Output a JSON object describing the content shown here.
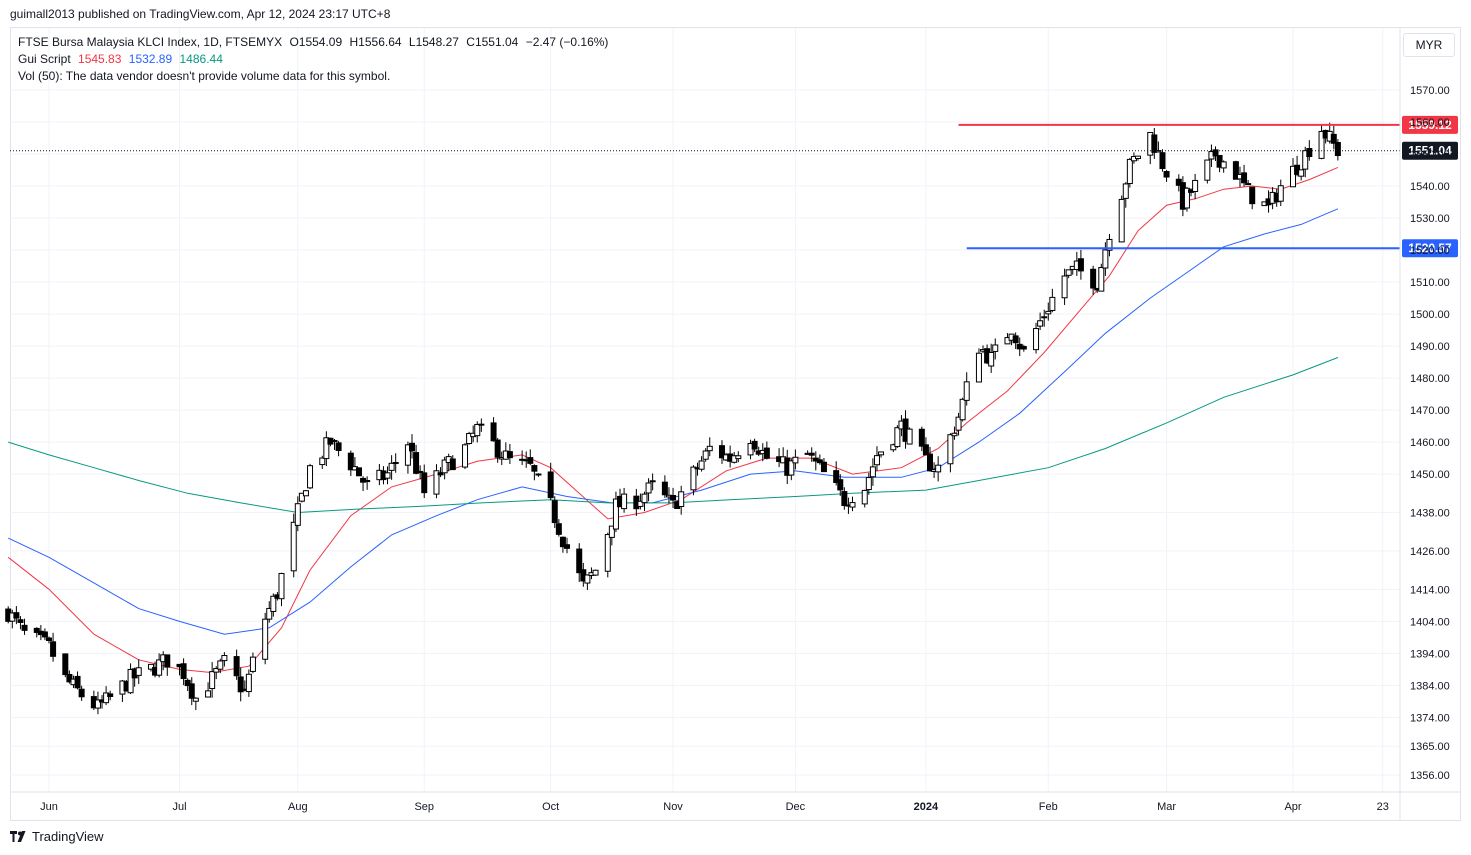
{
  "header": {
    "published_by": "guimall2013 published on TradingView.com, Apr 12, 2024 23:17 UTC+8"
  },
  "legend": {
    "symbol_line": "FTSE Bursa Malaysia KLCI Index, 1D, FTSEMYX",
    "open": "O1554.09",
    "high": "H1556.64",
    "low": "L1548.27",
    "close": "C1551.04",
    "change": "−2.47 (−0.16%)",
    "script_name": "Gui Script",
    "ma_fast_value": "1545.83",
    "ma_mid_value": "1532.89",
    "ma_slow_value": "1486.44",
    "volume_note": "Vol (50): The data vendor doesn't provide volume data for this symbol."
  },
  "currency": "MYR",
  "brand": "TradingView",
  "colors": {
    "ma_fast": "#f23645",
    "ma_mid": "#2962ff",
    "ma_slow": "#089981",
    "resistance": "#f23645",
    "support": "#2962ff",
    "grid": "#f0f3fa",
    "text": "#131722"
  },
  "chart_data": {
    "type": "candlestick",
    "price_axis": {
      "min": 1350,
      "max": 1580,
      "ticks": [
        1570,
        1560,
        1550,
        1540,
        1530,
        1520,
        1510,
        1500,
        1490,
        1480,
        1470,
        1460,
        1450,
        1438,
        1426,
        1414,
        1404,
        1394,
        1384,
        1374,
        1365,
        1356
      ],
      "tick_labels": [
        "1570.00",
        "1560.00",
        "1550.00",
        "1540.00",
        "1530.00",
        "1520.00",
        "1510.00",
        "1500.00",
        "1490.00",
        "1480.00",
        "1470.00",
        "1460.00",
        "1450.00",
        "1438.00",
        "1426.00",
        "1414.00",
        "1404.00",
        "1394.00",
        "1384.00",
        "1374.00",
        "1365.00",
        "1356.00"
      ]
    },
    "time_axis": {
      "labels": [
        {
          "date": "2023-06-01",
          "label": "Jun",
          "bold": false
        },
        {
          "date": "2023-07-03",
          "label": "Jul",
          "bold": false
        },
        {
          "date": "2023-08-01",
          "label": "Aug",
          "bold": false
        },
        {
          "date": "2023-09-01",
          "label": "Sep",
          "bold": false
        },
        {
          "date": "2023-10-02",
          "label": "Oct",
          "bold": false
        },
        {
          "date": "2023-11-01",
          "label": "Nov",
          "bold": false
        },
        {
          "date": "2023-12-01",
          "label": "Dec",
          "bold": false
        },
        {
          "date": "2024-01-02",
          "label": "2024",
          "bold": true
        },
        {
          "date": "2024-02-01",
          "label": "Feb",
          "bold": false
        },
        {
          "date": "2024-03-01",
          "label": "Mar",
          "bold": false
        },
        {
          "date": "2024-04-01",
          "label": "Apr",
          "bold": false
        },
        {
          "date": "2024-04-23",
          "label": "23",
          "bold": false
        }
      ]
    },
    "last_price": {
      "value": 1551.04,
      "label": "1551.04"
    },
    "horizontal_levels": [
      {
        "name": "resistance",
        "value": 1559.12,
        "label": "1559.12",
        "start_date": "2024-01-10"
      },
      {
        "name": "support",
        "value": 1520.57,
        "label": "1520.57",
        "start_date": "2024-01-12"
      }
    ],
    "closes": [
      {
        "date": "2023-05-22",
        "close": 1407
      },
      {
        "date": "2023-05-26",
        "close": 1400
      },
      {
        "date": "2023-06-01",
        "close": 1396
      },
      {
        "date": "2023-06-05",
        "close": 1386
      },
      {
        "date": "2023-06-09",
        "close": 1381
      },
      {
        "date": "2023-06-13",
        "close": 1377
      },
      {
        "date": "2023-06-16",
        "close": 1380
      },
      {
        "date": "2023-06-21",
        "close": 1386
      },
      {
        "date": "2023-06-26",
        "close": 1389
      },
      {
        "date": "2023-06-30",
        "close": 1392
      },
      {
        "date": "2023-07-04",
        "close": 1388
      },
      {
        "date": "2023-07-07",
        "close": 1380
      },
      {
        "date": "2023-07-11",
        "close": 1386
      },
      {
        "date": "2023-07-14",
        "close": 1391
      },
      {
        "date": "2023-07-19",
        "close": 1382
      },
      {
        "date": "2023-07-24",
        "close": 1405
      },
      {
        "date": "2023-07-27",
        "close": 1413
      },
      {
        "date": "2023-08-01",
        "close": 1438
      },
      {
        "date": "2023-08-04",
        "close": 1452
      },
      {
        "date": "2023-08-09",
        "close": 1460
      },
      {
        "date": "2023-08-15",
        "close": 1452
      },
      {
        "date": "2023-08-18",
        "close": 1446
      },
      {
        "date": "2023-08-23",
        "close": 1450
      },
      {
        "date": "2023-08-28",
        "close": 1460
      },
      {
        "date": "2023-09-01",
        "close": 1444
      },
      {
        "date": "2023-09-06",
        "close": 1452
      },
      {
        "date": "2023-09-11",
        "close": 1458
      },
      {
        "date": "2023-09-14",
        "close": 1464
      },
      {
        "date": "2023-09-19",
        "close": 1458
      },
      {
        "date": "2023-09-22",
        "close": 1454
      },
      {
        "date": "2023-09-27",
        "close": 1452
      },
      {
        "date": "2023-10-02",
        "close": 1440
      },
      {
        "date": "2023-10-05",
        "close": 1430
      },
      {
        "date": "2023-10-10",
        "close": 1415
      },
      {
        "date": "2023-10-13",
        "close": 1420
      },
      {
        "date": "2023-10-18",
        "close": 1440
      },
      {
        "date": "2023-10-23",
        "close": 1442
      },
      {
        "date": "2023-10-27",
        "close": 1446
      },
      {
        "date": "2023-11-01",
        "close": 1440
      },
      {
        "date": "2023-11-06",
        "close": 1450
      },
      {
        "date": "2023-11-10",
        "close": 1458
      },
      {
        "date": "2023-11-15",
        "close": 1455
      },
      {
        "date": "2023-11-20",
        "close": 1462
      },
      {
        "date": "2023-11-24",
        "close": 1455
      },
      {
        "date": "2023-11-29",
        "close": 1452
      },
      {
        "date": "2023-12-04",
        "close": 1456
      },
      {
        "date": "2023-12-08",
        "close": 1450
      },
      {
        "date": "2023-12-13",
        "close": 1442
      },
      {
        "date": "2023-12-18",
        "close": 1446
      },
      {
        "date": "2023-12-21",
        "close": 1456
      },
      {
        "date": "2023-12-27",
        "close": 1465
      },
      {
        "date": "2024-01-02",
        "close": 1454
      },
      {
        "date": "2024-01-05",
        "close": 1452
      },
      {
        "date": "2024-01-10",
        "close": 1468
      },
      {
        "date": "2024-01-15",
        "close": 1490
      },
      {
        "date": "2024-01-18",
        "close": 1486
      },
      {
        "date": "2024-01-23",
        "close": 1496
      },
      {
        "date": "2024-01-26",
        "close": 1488
      },
      {
        "date": "2024-01-31",
        "close": 1500
      },
      {
        "date": "2024-02-05",
        "close": 1512
      },
      {
        "date": "2024-02-08",
        "close": 1514
      },
      {
        "date": "2024-02-13",
        "close": 1510
      },
      {
        "date": "2024-02-16",
        "close": 1526
      },
      {
        "date": "2024-02-21",
        "close": 1546
      },
      {
        "date": "2024-02-26",
        "close": 1556
      },
      {
        "date": "2024-02-29",
        "close": 1547
      },
      {
        "date": "2024-03-05",
        "close": 1535
      },
      {
        "date": "2024-03-08",
        "close": 1540
      },
      {
        "date": "2024-03-13",
        "close": 1550
      },
      {
        "date": "2024-03-18",
        "close": 1544
      },
      {
        "date": "2024-03-21",
        "close": 1538
      },
      {
        "date": "2024-03-26",
        "close": 1533
      },
      {
        "date": "2024-03-29",
        "close": 1540
      },
      {
        "date": "2024-04-03",
        "close": 1548
      },
      {
        "date": "2024-04-08",
        "close": 1558
      },
      {
        "date": "2024-04-12",
        "close": 1551
      }
    ],
    "series": [
      {
        "id": "ma_fast",
        "name": "Gui Script",
        "values": [
          {
            "date": "2023-05-22",
            "value": 1424
          },
          {
            "date": "2023-06-01",
            "value": 1414
          },
          {
            "date": "2023-06-12",
            "value": 1400
          },
          {
            "date": "2023-06-23",
            "value": 1392
          },
          {
            "date": "2023-07-03",
            "value": 1389
          },
          {
            "date": "2023-07-11",
            "value": 1388
          },
          {
            "date": "2023-07-20",
            "value": 1390
          },
          {
            "date": "2023-07-28",
            "value": 1402
          },
          {
            "date": "2023-08-04",
            "value": 1420
          },
          {
            "date": "2023-08-14",
            "value": 1437
          },
          {
            "date": "2023-08-24",
            "value": 1446
          },
          {
            "date": "2023-09-04",
            "value": 1450
          },
          {
            "date": "2023-09-14",
            "value": 1454
          },
          {
            "date": "2023-09-25",
            "value": 1456
          },
          {
            "date": "2023-10-02",
            "value": 1452
          },
          {
            "date": "2023-10-09",
            "value": 1444
          },
          {
            "date": "2023-10-16",
            "value": 1436
          },
          {
            "date": "2023-10-25",
            "value": 1438
          },
          {
            "date": "2023-11-03",
            "value": 1442
          },
          {
            "date": "2023-11-14",
            "value": 1451
          },
          {
            "date": "2023-11-24",
            "value": 1455
          },
          {
            "date": "2023-12-05",
            "value": 1455
          },
          {
            "date": "2023-12-15",
            "value": 1450
          },
          {
            "date": "2023-12-27",
            "value": 1452
          },
          {
            "date": "2024-01-05",
            "value": 1458
          },
          {
            "date": "2024-01-12",
            "value": 1466
          },
          {
            "date": "2024-01-22",
            "value": 1476
          },
          {
            "date": "2024-01-31",
            "value": 1488
          },
          {
            "date": "2024-02-08",
            "value": 1500
          },
          {
            "date": "2024-02-16",
            "value": 1512
          },
          {
            "date": "2024-02-23",
            "value": 1526
          },
          {
            "date": "2024-03-01",
            "value": 1534
          },
          {
            "date": "2024-03-08",
            "value": 1536
          },
          {
            "date": "2024-03-15",
            "value": 1539
          },
          {
            "date": "2024-03-22",
            "value": 1540
          },
          {
            "date": "2024-03-29",
            "value": 1539
          },
          {
            "date": "2024-04-05",
            "value": 1542
          },
          {
            "date": "2024-04-12",
            "value": 1545.83
          }
        ]
      },
      {
        "id": "ma_mid",
        "name": "",
        "values": [
          {
            "date": "2023-05-22",
            "value": 1430
          },
          {
            "date": "2023-06-01",
            "value": 1424
          },
          {
            "date": "2023-06-12",
            "value": 1416
          },
          {
            "date": "2023-06-23",
            "value": 1408
          },
          {
            "date": "2023-07-03",
            "value": 1404
          },
          {
            "date": "2023-07-14",
            "value": 1400
          },
          {
            "date": "2023-07-25",
            "value": 1402
          },
          {
            "date": "2023-08-04",
            "value": 1410
          },
          {
            "date": "2023-08-14",
            "value": 1421
          },
          {
            "date": "2023-08-24",
            "value": 1431
          },
          {
            "date": "2023-09-04",
            "value": 1437
          },
          {
            "date": "2023-09-14",
            "value": 1442
          },
          {
            "date": "2023-09-25",
            "value": 1446
          },
          {
            "date": "2023-10-06",
            "value": 1443
          },
          {
            "date": "2023-10-17",
            "value": 1441
          },
          {
            "date": "2023-10-27",
            "value": 1441
          },
          {
            "date": "2023-11-08",
            "value": 1445
          },
          {
            "date": "2023-11-20",
            "value": 1450
          },
          {
            "date": "2023-12-01",
            "value": 1451
          },
          {
            "date": "2023-12-13",
            "value": 1449
          },
          {
            "date": "2023-12-27",
            "value": 1449
          },
          {
            "date": "2024-01-05",
            "value": 1452
          },
          {
            "date": "2024-01-15",
            "value": 1460
          },
          {
            "date": "2024-01-25",
            "value": 1469
          },
          {
            "date": "2024-02-05",
            "value": 1482
          },
          {
            "date": "2024-02-15",
            "value": 1494
          },
          {
            "date": "2024-02-26",
            "value": 1505
          },
          {
            "date": "2024-03-06",
            "value": 1513
          },
          {
            "date": "2024-03-15",
            "value": 1521
          },
          {
            "date": "2024-03-25",
            "value": 1525
          },
          {
            "date": "2024-04-03",
            "value": 1528
          },
          {
            "date": "2024-04-12",
            "value": 1532.89
          }
        ]
      },
      {
        "id": "ma_slow",
        "name": "",
        "values": [
          {
            "date": "2023-05-22",
            "value": 1460
          },
          {
            "date": "2023-06-01",
            "value": 1456
          },
          {
            "date": "2023-06-12",
            "value": 1452
          },
          {
            "date": "2023-06-23",
            "value": 1448
          },
          {
            "date": "2023-07-05",
            "value": 1444
          },
          {
            "date": "2023-07-18",
            "value": 1441
          },
          {
            "date": "2023-08-01",
            "value": 1438
          },
          {
            "date": "2023-08-15",
            "value": 1439
          },
          {
            "date": "2023-09-01",
            "value": 1440
          },
          {
            "date": "2023-09-15",
            "value": 1441
          },
          {
            "date": "2023-10-02",
            "value": 1442
          },
          {
            "date": "2023-10-16",
            "value": 1441
          },
          {
            "date": "2023-11-01",
            "value": 1441
          },
          {
            "date": "2023-11-15",
            "value": 1442
          },
          {
            "date": "2023-12-01",
            "value": 1443
          },
          {
            "date": "2023-12-15",
            "value": 1444
          },
          {
            "date": "2024-01-02",
            "value": 1445
          },
          {
            "date": "2024-01-15",
            "value": 1448
          },
          {
            "date": "2024-02-01",
            "value": 1452
          },
          {
            "date": "2024-02-15",
            "value": 1458
          },
          {
            "date": "2024-03-01",
            "value": 1466
          },
          {
            "date": "2024-03-15",
            "value": 1474
          },
          {
            "date": "2024-04-01",
            "value": 1481
          },
          {
            "date": "2024-04-12",
            "value": 1486.44
          }
        ]
      }
    ]
  }
}
